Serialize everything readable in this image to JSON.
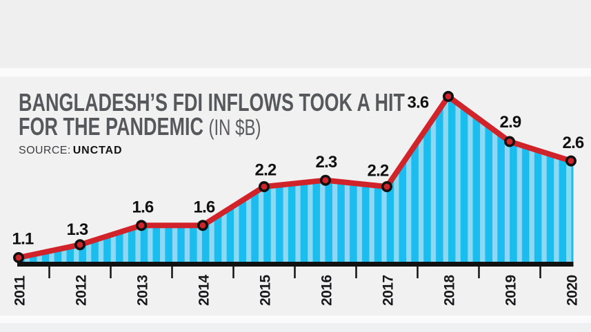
{
  "header": {
    "title_line1": "BANGLADESH’S FDI INFLOWS TOOK A HIT",
    "title_line2": "FOR THE PANDEMIC",
    "title_unit": "(IN $B)",
    "source_label": "SOURCE:",
    "source_value": "UNCTAD"
  },
  "chart_data": {
    "type": "area",
    "title": "BANGLADESH’S FDI INFLOWS TOOK A HIT FOR THE PANDEMIC",
    "unit": "IN $B",
    "source": "UNCTAD",
    "categories": [
      "2011",
      "2012",
      "2013",
      "2014",
      "2015",
      "2016",
      "2017",
      "2018",
      "2019",
      "2020"
    ],
    "values": [
      1.1,
      1.3,
      1.6,
      1.6,
      2.2,
      2.3,
      2.2,
      3.6,
      2.9,
      2.6
    ],
    "series_name": "FDI inflows ($B)",
    "xlabel": "",
    "ylabel": "",
    "ylim_visible": [
      1.1,
      3.6
    ],
    "legend": false,
    "grid": false,
    "y_axis": "hidden, values printed at each point",
    "x_tick_style": "short ticks between years, year labels rotated 90 degrees",
    "area_pattern": "vertical stripes",
    "colors": {
      "stripe_dark": "#1abdee",
      "stripe_light": "#8dd9f4",
      "line": "#d1232a",
      "marker_fill": "#d1232a",
      "marker_stroke": "#111111",
      "axis": "#121213",
      "value_label": "#101011",
      "year_label": "#18181a",
      "title": "#57585b"
    }
  }
}
